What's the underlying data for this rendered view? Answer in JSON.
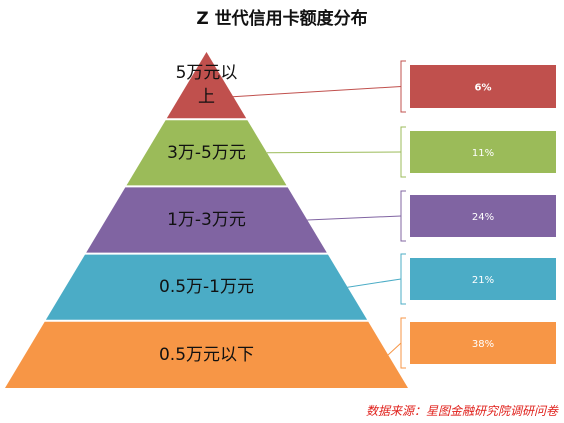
{
  "chart_data": {
    "type": "pyramid",
    "title": "Z 世代信用卡额度分布",
    "categories": [
      "5万元以上",
      "3万-5万元",
      "1万-3万元",
      "0.5万-1万元",
      "0.5万元以下"
    ],
    "values": [
      6,
      11,
      24,
      21,
      38
    ],
    "value_labels": [
      "6%",
      "11%",
      "24%",
      "21%",
      "38%"
    ],
    "colors": [
      "#c0504d",
      "#9bbb59",
      "#8064a2",
      "#4bacc6",
      "#f79646"
    ],
    "source": "数据来源：星图金融研究院调研问卷"
  }
}
